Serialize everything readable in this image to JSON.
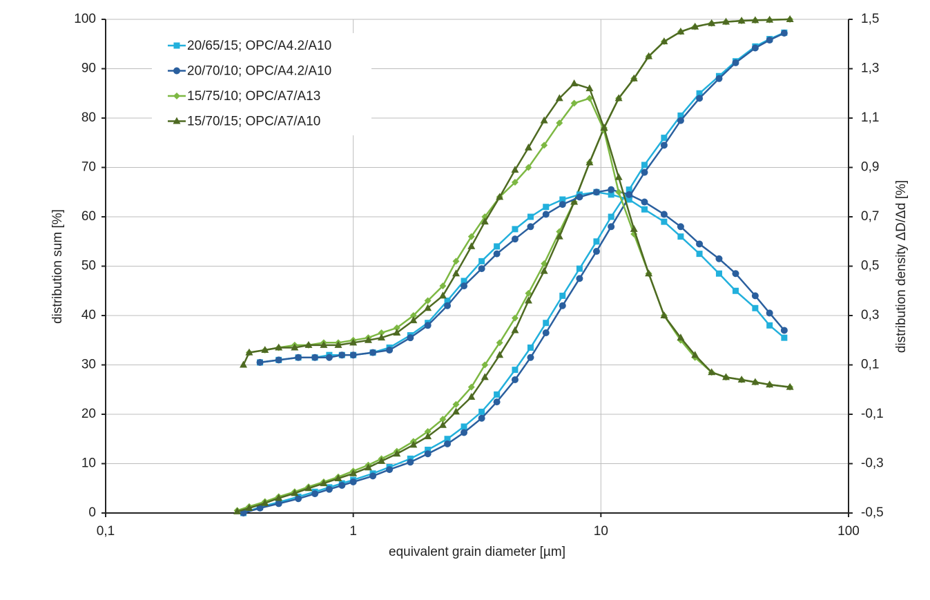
{
  "chart_data": {
    "type": "line",
    "xlabel": "equivalent grain diameter [µm]",
    "ylabel": "distribution sum [%]",
    "y2label": "distribution density ΔD/Δd [%]",
    "xscale": "log",
    "grid": true,
    "legend": "upper left",
    "xlim": [
      0.1,
      100
    ],
    "xticks": [
      {
        "value": 0.1,
        "label": "0,1"
      },
      1,
      10,
      100
    ],
    "ylim": [
      0,
      100
    ],
    "yticks": [
      0,
      10,
      20,
      30,
      40,
      50,
      60,
      70,
      80,
      90,
      100
    ],
    "y2lim": [
      -0.5,
      1.5
    ],
    "y2ticks": [
      {
        "value": -0.5,
        "label": "-0,5"
      },
      {
        "value": -0.3,
        "label": "-0,3"
      },
      {
        "value": -0.1,
        "label": "-0,1"
      },
      {
        "value": 0.1,
        "label": "0,1"
      },
      {
        "value": 0.3,
        "label": "0,3"
      },
      {
        "value": 0.5,
        "label": "0,5"
      },
      {
        "value": 0.7,
        "label": "0,7"
      },
      {
        "value": 0.9,
        "label": "0,9"
      },
      {
        "value": 1.1,
        "label": "1,1"
      },
      {
        "value": 1.3,
        "label": "1,3"
      },
      {
        "value": 1.5,
        "label": "1,5"
      }
    ],
    "series": [
      {
        "name": "20/65/15; OPC/A4.2/A10",
        "color": "#22b0dc",
        "marker": "square",
        "x": [
          0.36,
          0.42,
          0.5,
          0.6,
          0.7,
          0.8,
          0.9,
          1.0,
          1.2,
          1.4,
          1.7,
          2.0,
          2.4,
          2.8,
          3.3,
          3.8,
          4.5,
          5.2,
          6.0,
          7.0,
          8.2,
          9.6,
          11,
          13,
          15,
          18,
          21,
          25,
          30,
          35,
          42,
          48,
          55
        ],
        "values": [
          0,
          1.2,
          2.2,
          3.3,
          4.3,
          5.2,
          6,
          6.7,
          8,
          9.3,
          11,
          12.8,
          15,
          17.5,
          20.5,
          24,
          29,
          33.5,
          38.5,
          44,
          49.5,
          55,
          60,
          65.5,
          70.5,
          76,
          80.5,
          85,
          88.5,
          91.5,
          94.5,
          96,
          97.3
        ]
      },
      {
        "name": "20/70/10; OPC/A4.2/A10",
        "color": "#2a5f9e",
        "marker": "circle",
        "x": [
          0.36,
          0.42,
          0.5,
          0.6,
          0.7,
          0.8,
          0.9,
          1.0,
          1.2,
          1.4,
          1.7,
          2.0,
          2.4,
          2.8,
          3.3,
          3.8,
          4.5,
          5.2,
          6.0,
          7.0,
          8.2,
          9.6,
          11,
          13,
          15,
          18,
          21,
          25,
          30,
          35,
          42,
          48,
          55
        ],
        "values": [
          0,
          1,
          1.9,
          2.9,
          3.9,
          4.8,
          5.6,
          6.3,
          7.5,
          8.8,
          10.3,
          12,
          14,
          16.3,
          19.2,
          22.5,
          27,
          31.5,
          36.5,
          42,
          47.5,
          53,
          58,
          64,
          69,
          74.5,
          79.5,
          84,
          88,
          91.2,
          94.2,
          95.8,
          97.2
        ]
      },
      {
        "name": "15/75/10; OPC/A7/A13",
        "color": "#7db843",
        "marker": "diamond",
        "x": [
          0.34,
          0.38,
          0.44,
          0.5,
          0.58,
          0.66,
          0.76,
          0.87,
          1.0,
          1.15,
          1.3,
          1.5,
          1.75,
          2.0,
          2.3,
          2.6,
          3.0,
          3.4,
          3.9,
          4.5,
          5.1,
          5.9,
          6.8,
          7.8,
          9,
          10.3,
          11.8,
          13.6,
          15.6,
          18,
          21,
          24,
          28,
          32,
          37,
          42,
          48,
          58
        ],
        "values": [
          0.5,
          1.3,
          2.3,
          3.3,
          4.3,
          5.3,
          6.3,
          7.3,
          8.5,
          9.7,
          11,
          12.5,
          14.5,
          16.5,
          19,
          22,
          25.5,
          30,
          34.5,
          39.5,
          44.5,
          50.5,
          57,
          63,
          71,
          78,
          84,
          88,
          92.5,
          95.5,
          97.5,
          98.5,
          99.2,
          99.5,
          99.7,
          99.8,
          99.9,
          100
        ]
      },
      {
        "name": "15/70/15; OPC/A7/A10",
        "color": "#4e6a22",
        "marker": "triangle",
        "x": [
          0.34,
          0.38,
          0.44,
          0.5,
          0.58,
          0.66,
          0.76,
          0.87,
          1.0,
          1.15,
          1.3,
          1.5,
          1.75,
          2.0,
          2.3,
          2.6,
          3.0,
          3.4,
          3.9,
          4.5,
          5.1,
          5.9,
          6.8,
          7.8,
          9,
          10.3,
          11.8,
          13.6,
          15.6,
          18,
          21,
          24,
          28,
          32,
          37,
          42,
          48,
          58
        ],
        "values": [
          0.3,
          1,
          2,
          3,
          4,
          5,
          6,
          7,
          8,
          9.2,
          10.5,
          12,
          13.8,
          15.5,
          17.8,
          20.5,
          23.5,
          27.5,
          32,
          37,
          43,
          49,
          56,
          63,
          71,
          78,
          84,
          88,
          92.5,
          95.5,
          97.5,
          98.5,
          99.2,
          99.5,
          99.7,
          99.8,
          99.9,
          100
        ]
      },
      {
        "color": "#22b0dc",
        "marker": "square",
        "axis": "y2",
        "x": [
          0.36,
          0.42,
          0.5,
          0.6,
          0.7,
          0.8,
          0.9,
          1.0,
          1.2,
          1.4,
          1.7,
          2.0,
          2.4,
          2.8,
          3.3,
          3.8,
          4.5,
          5.2,
          6.0,
          7.0,
          8.2,
          9.6,
          11,
          13,
          15,
          18,
          21,
          25,
          30,
          35,
          42,
          48,
          55
        ],
        "values": [
          null,
          0.11,
          0.12,
          0.13,
          0.13,
          0.14,
          0.14,
          0.14,
          0.15,
          0.17,
          0.22,
          0.27,
          0.36,
          0.44,
          0.52,
          0.58,
          0.65,
          0.7,
          0.74,
          0.77,
          0.79,
          0.8,
          0.79,
          0.77,
          0.73,
          0.68,
          0.62,
          0.55,
          0.47,
          0.4,
          0.33,
          0.26,
          0.21
        ]
      },
      {
        "color": "#2a5f9e",
        "marker": "circle",
        "axis": "y2",
        "x": [
          0.36,
          0.42,
          0.5,
          0.6,
          0.7,
          0.8,
          0.9,
          1.0,
          1.2,
          1.4,
          1.7,
          2.0,
          2.4,
          2.8,
          3.3,
          3.8,
          4.5,
          5.2,
          6.0,
          7.0,
          8.2,
          9.6,
          11,
          13,
          15,
          18,
          21,
          25,
          30,
          35,
          42,
          48,
          55
        ],
        "values": [
          null,
          0.11,
          0.12,
          0.13,
          0.13,
          0.13,
          0.14,
          0.14,
          0.15,
          0.16,
          0.21,
          0.26,
          0.34,
          0.42,
          0.49,
          0.55,
          0.61,
          0.66,
          0.71,
          0.75,
          0.78,
          0.8,
          0.81,
          0.79,
          0.76,
          0.71,
          0.66,
          0.59,
          0.53,
          0.47,
          0.38,
          0.31,
          0.24
        ]
      },
      {
        "color": "#7db843",
        "marker": "diamond",
        "axis": "y2",
        "x": [
          0.34,
          0.38,
          0.44,
          0.5,
          0.58,
          0.66,
          0.76,
          0.87,
          1.0,
          1.15,
          1.3,
          1.5,
          1.75,
          2.0,
          2.3,
          2.6,
          3.0,
          3.4,
          3.9,
          4.5,
          5.1,
          5.9,
          6.8,
          7.8,
          9,
          10.3,
          11.8,
          13.6,
          15.6,
          18,
          21,
          24,
          28,
          32,
          37,
          42,
          48,
          58
        ],
        "values": [
          null,
          0.15,
          0.16,
          0.17,
          0.18,
          0.18,
          0.19,
          0.19,
          0.2,
          0.21,
          0.23,
          0.25,
          0.3,
          0.36,
          0.42,
          0.52,
          0.62,
          0.7,
          0.78,
          0.84,
          0.9,
          0.99,
          1.08,
          1.16,
          1.18,
          1.05,
          0.8,
          0.63,
          0.47,
          0.3,
          0.2,
          0.13,
          0.07,
          0.05,
          0.04,
          0.03,
          0.02,
          0.01
        ]
      },
      {
        "color": "#4e6a22",
        "marker": "triangle",
        "axis": "y2",
        "x": [
          0.36,
          0.38,
          0.44,
          0.5,
          0.58,
          0.66,
          0.76,
          0.87,
          1.0,
          1.15,
          1.3,
          1.5,
          1.75,
          2.0,
          2.3,
          2.6,
          3.0,
          3.4,
          3.9,
          4.5,
          5.1,
          5.9,
          6.8,
          7.8,
          9,
          10.3,
          11.8,
          13.6,
          15.6,
          18,
          21,
          24,
          28,
          32,
          37,
          42,
          48,
          58
        ],
        "values": [
          0.1,
          0.15,
          0.16,
          0.17,
          0.17,
          0.18,
          0.18,
          0.18,
          0.19,
          0.2,
          0.21,
          0.23,
          0.28,
          0.33,
          0.38,
          0.47,
          0.58,
          0.68,
          0.78,
          0.89,
          0.98,
          1.09,
          1.18,
          1.24,
          1.22,
          1.06,
          0.86,
          0.65,
          0.47,
          0.3,
          0.21,
          0.14,
          0.07,
          0.05,
          0.04,
          0.03,
          0.02,
          0.01
        ]
      }
    ]
  }
}
